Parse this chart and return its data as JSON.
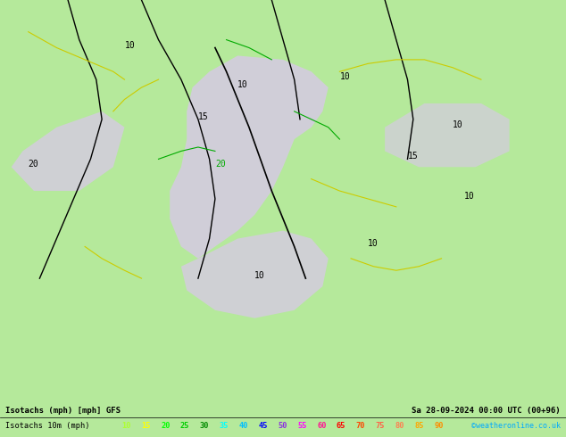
{
  "title_left": "Isotachs (mph) [mph] GFS",
  "title_right": "Sa 28-09-2024 00:00 UTC (00+96)",
  "legend_label": "Isotachs 10m (mph)",
  "legend_values": [
    10,
    15,
    20,
    25,
    30,
    35,
    40,
    45,
    50,
    55,
    60,
    65,
    70,
    75,
    80,
    85,
    90
  ],
  "legend_colors": [
    "#adff2f",
    "#ffff00",
    "#00ff00",
    "#00cd00",
    "#008b00",
    "#00ffff",
    "#00bfff",
    "#0000ff",
    "#8a2be2",
    "#ff00ff",
    "#ff1493",
    "#ff0000",
    "#ff4500",
    "#ff6347",
    "#ff7f50",
    "#ffa500",
    "#ff8c00"
  ],
  "copyright": "©weatheronline.co.uk",
  "bg_color": "#b5e99b",
  "map_bg": "#b5e99b",
  "bottom_bar_color": "#b5e99b",
  "figsize": [
    6.34,
    4.9
  ],
  "dpi": 100,
  "shade_color": "#d8c8e8"
}
